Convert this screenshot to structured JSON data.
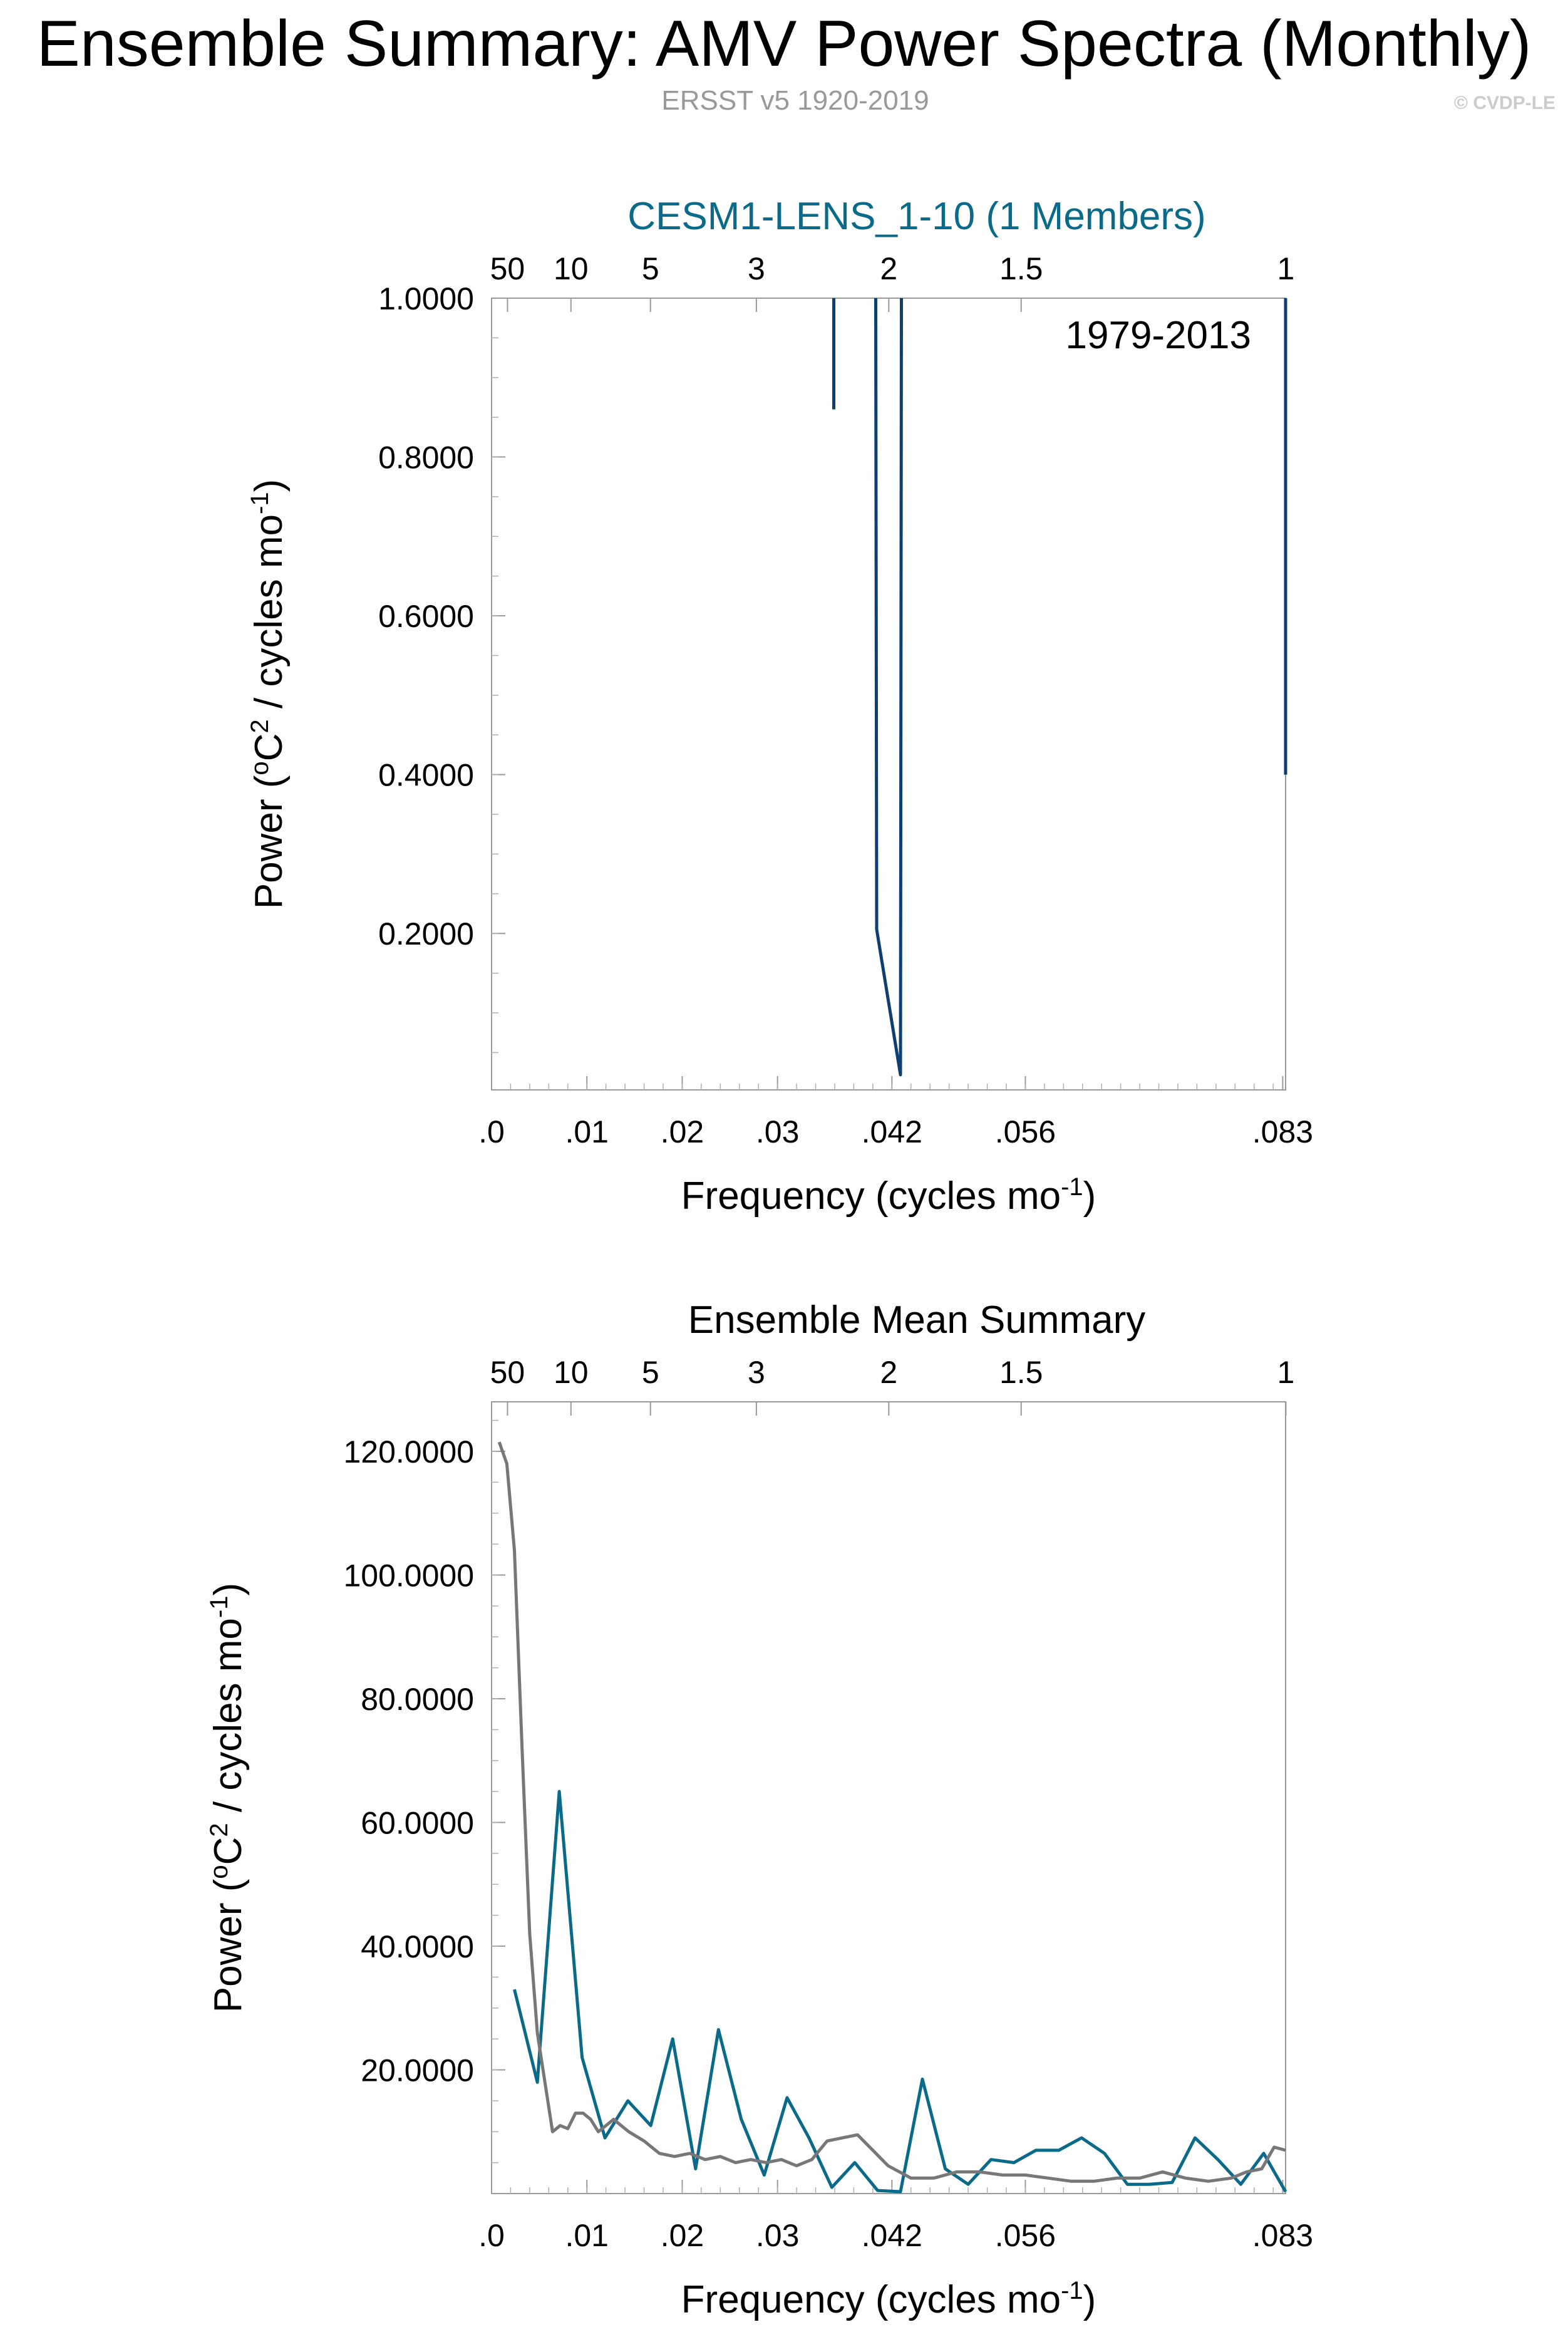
{
  "page": {
    "title": "Ensemble Summary: AMV Power Spectra (Monthly)",
    "subtitle": "ERSST v5 1920-2019",
    "copyright": "© CVDP-LE"
  },
  "colors": {
    "series_teal": "#0a6a8a",
    "series_navy": "#0d3f73",
    "series_gray": "#777777",
    "title_teal": "#0a6a8a"
  },
  "chart_data": [
    {
      "type": "line",
      "title": "CESM1-LENS_1-10 (1 Members)",
      "annotation": "1979-2013",
      "xlabel": "Frequency (cycles mo-1)",
      "ylabel": "Power (oC2 / cycles mo-1)",
      "xlim": [
        0,
        0.0833
      ],
      "ylim": [
        0.003,
        1.0
      ],
      "x_ticks": [
        ".0",
        ".01",
        ".02",
        ".03",
        ".042",
        ".056",
        ".083"
      ],
      "x_tick_values": [
        0,
        0.01,
        0.02,
        0.03,
        0.042,
        0.056,
        0.083
      ],
      "y_ticks": [
        "0.2000",
        "0.4000",
        "0.6000",
        "0.8000",
        "1.0000"
      ],
      "y_tick_values": [
        0.2,
        0.4,
        0.6,
        0.8,
        1.0
      ],
      "top_axis_label_period_years": [
        "50",
        "10",
        "5",
        "3",
        "2",
        "1.5",
        "1"
      ],
      "top_axis_frequency": [
        0.00167,
        0.00833,
        0.01667,
        0.02778,
        0.04167,
        0.05556,
        0.08333
      ],
      "series": [
        {
          "color": "#0d3f73",
          "segments": [
            {
              "x": [
                0.0359,
                0.0359
              ],
              "y": [
                0.86,
                1.0
              ]
            },
            {
              "x": [
                0.0403,
                0.0404,
                0.0429,
                0.043
              ],
              "y": [
                1.0,
                0.205,
                0.022,
                1.0
              ]
            },
            {
              "x": [
                0.0833,
                0.0833
              ],
              "y": [
                1.0,
                0.4
              ]
            }
          ]
        }
      ]
    },
    {
      "type": "line",
      "title": "Ensemble Mean Summary",
      "xlabel": "Frequency (cycles mo-1)",
      "ylabel": "Power (oC2 / cycles mo-1)",
      "xlim": [
        0,
        0.0833
      ],
      "ylim": [
        0,
        128
      ],
      "x_ticks": [
        ".0",
        ".01",
        ".02",
        ".03",
        ".042",
        ".056",
        ".083"
      ],
      "x_tick_values": [
        0,
        0.01,
        0.02,
        0.03,
        0.042,
        0.056,
        0.083
      ],
      "y_ticks": [
        "20.0000",
        "40.0000",
        "60.0000",
        "80.0000",
        "100.0000",
        "120.0000"
      ],
      "y_tick_values": [
        20,
        40,
        60,
        80,
        100,
        120
      ],
      "top_axis_label_period_years": [
        "50",
        "10",
        "5",
        "3",
        "2",
        "1.5",
        "1"
      ],
      "top_axis_frequency": [
        0.00167,
        0.00833,
        0.01667,
        0.02778,
        0.04167,
        0.05556,
        0.08333
      ],
      "series": [
        {
          "color": "#0a6a8a",
          "x": [
            0.0024,
            0.0048,
            0.0071,
            0.0095,
            0.0119,
            0.0143,
            0.0167,
            0.019,
            0.0214,
            0.0238,
            0.0262,
            0.0286,
            0.031,
            0.0333,
            0.0357,
            0.0381,
            0.0405,
            0.0429,
            0.0452,
            0.0476,
            0.05,
            0.0524,
            0.0548,
            0.0571,
            0.0595,
            0.0619,
            0.0643,
            0.0667,
            0.069,
            0.0714,
            0.0738,
            0.0762,
            0.0786,
            0.081,
            0.0833
          ],
          "y": [
            33,
            18,
            65,
            22,
            9,
            15,
            11,
            25,
            4,
            26.5,
            12,
            3,
            15.5,
            9,
            1,
            5,
            0.5,
            0.3,
            18.5,
            4,
            1.5,
            5.5,
            5,
            7,
            7,
            9,
            6.5,
            1.5,
            1.5,
            1.8,
            9,
            5.5,
            1.5,
            6.5,
            0.3
          ]
        },
        {
          "color": "#777777",
          "x": [
            0.0008,
            0.0016,
            0.0024,
            0.0032,
            0.004,
            0.0048,
            0.0056,
            0.0064,
            0.0072,
            0.008,
            0.0088,
            0.0096,
            0.0104,
            0.0112,
            0.012,
            0.0128,
            0.0136,
            0.0144,
            0.016,
            0.0176,
            0.0192,
            0.0208,
            0.0224,
            0.024,
            0.0256,
            0.0272,
            0.0288,
            0.0304,
            0.032,
            0.0336,
            0.0352,
            0.0368,
            0.0384,
            0.04,
            0.0416,
            0.044,
            0.0464,
            0.0488,
            0.0512,
            0.0536,
            0.056,
            0.0584,
            0.0608,
            0.0632,
            0.0656,
            0.068,
            0.0704,
            0.0728,
            0.0752,
            0.0776,
            0.0792,
            0.0808,
            0.0821,
            0.0833
          ],
          "y": [
            121.5,
            118,
            104,
            72,
            42,
            26,
            18,
            10,
            11,
            10.5,
            13,
            13,
            12,
            10,
            11,
            12,
            11,
            10,
            8.5,
            6.5,
            6,
            6.5,
            5.5,
            6,
            5,
            5.5,
            5,
            5.5,
            4.5,
            5.5,
            8.5,
            9,
            9.5,
            7,
            4.5,
            2.5,
            2.5,
            3.5,
            3.5,
            3,
            3,
            2.5,
            2,
            2,
            2.5,
            2.5,
            3.5,
            2.5,
            2,
            2.5,
            3.5,
            4,
            7.5,
            7
          ]
        }
      ]
    }
  ]
}
